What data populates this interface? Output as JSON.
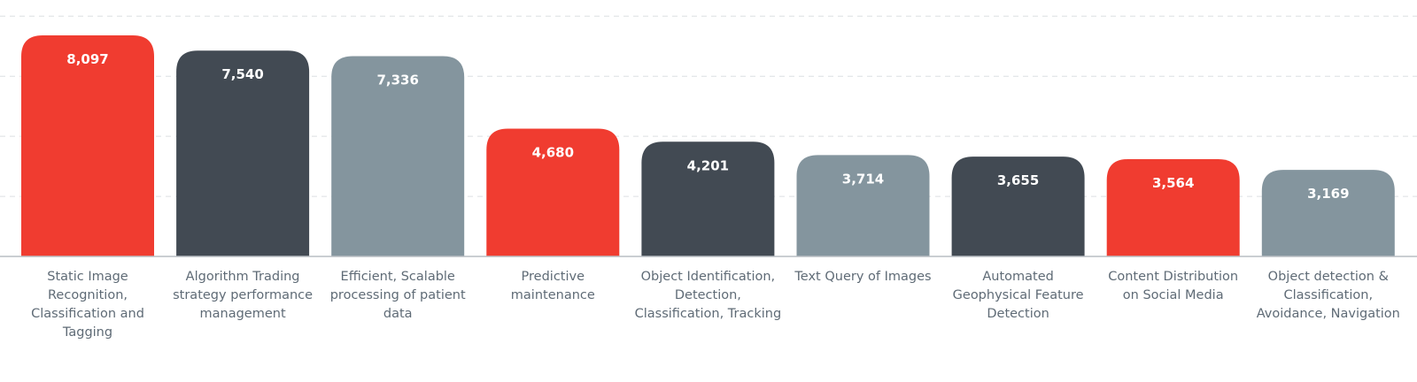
{
  "chart_data": {
    "type": "bar",
    "categories": [
      "Static Image Recognition, Classification and Tagging",
      "Algorithm Trading strategy performance management",
      "Efficient, Scalable processing of patient data",
      "Predictive maintenance",
      "Object Identification, Detection, Classification, Tracking",
      "Text Query of Images",
      "Automated Geophysical Feature Detection",
      "Content Distribution on Social Media",
      "Object detection & Classification, Avoidance, Navigation"
    ],
    "category_lines": [
      [
        "Static Image",
        "Recognition,",
        "Classification and",
        "Tagging"
      ],
      [
        "Algorithm Trading",
        "strategy performance",
        "management"
      ],
      [
        "Efficient, Scalable",
        "processing of patient",
        "data"
      ],
      [
        "Predictive",
        "maintenance"
      ],
      [
        "Object Identification,",
        "Detection,",
        "Classification, Tracking"
      ],
      [
        "Text Query of Images"
      ],
      [
        "Automated",
        "Geophysical Feature",
        "Detection"
      ],
      [
        "Content Distribution",
        "on Social Media"
      ],
      [
        "Object detection &",
        "Classification,",
        "Avoidance, Navigation"
      ]
    ],
    "values": [
      8097,
      7540,
      7336,
      4680,
      4201,
      3714,
      3655,
      3564,
      3169
    ],
    "value_labels": [
      "8,097",
      "7,540",
      "7,336",
      "4,680",
      "4,201",
      "3,714",
      "3,655",
      "3,564",
      "3,169"
    ],
    "bar_colors": [
      "#f03c30",
      "#424a53",
      "#84959e",
      "#f03c30",
      "#424a53",
      "#84959e",
      "#424a53",
      "#f03c30",
      "#84959e"
    ],
    "title": "",
    "xlabel": "",
    "ylabel": "",
    "ylim": [
      0,
      8800
    ],
    "grid": true,
    "gridlines": [
      2200,
      4400,
      6600,
      8800
    ],
    "legend": "none"
  }
}
